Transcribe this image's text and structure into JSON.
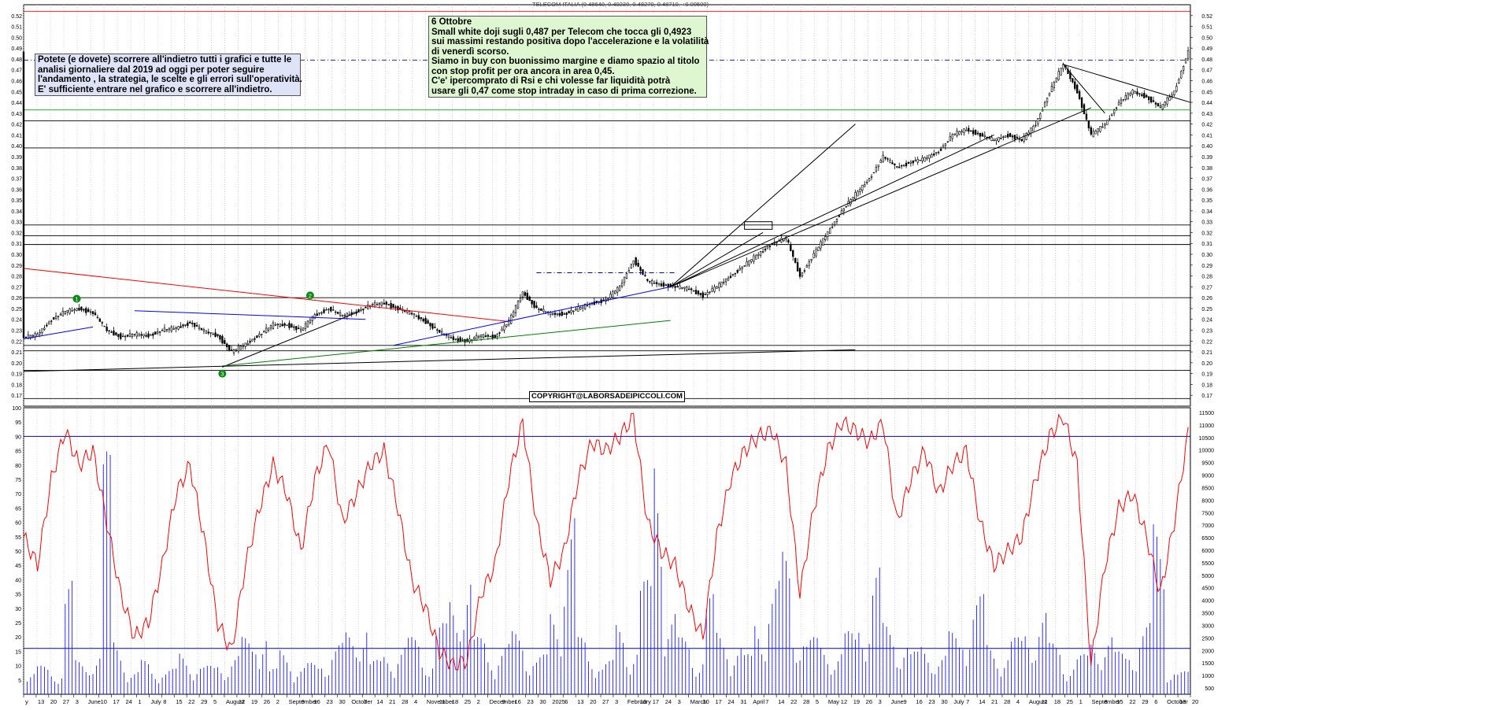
{
  "chart_data": [
    {
      "type": "candlestick",
      "title": "TELECOM ITALIA (0.48640, 0.49230, 0.48270, 0.48710, +0.00500)",
      "ylim": [
        0.16,
        0.53
      ],
      "y_ticks": [
        0.17,
        0.18,
        0.19,
        0.2,
        0.21,
        0.22,
        0.23,
        0.24,
        0.25,
        0.26,
        0.27,
        0.28,
        0.29,
        0.3,
        0.31,
        0.32,
        0.33,
        0.34,
        0.35,
        0.36,
        0.37,
        0.38,
        0.39,
        0.4,
        0.41,
        0.42,
        0.43,
        0.44,
        0.45,
        0.46,
        0.47,
        0.48,
        0.49,
        0.5,
        0.51,
        0.52
      ],
      "x_labels": [
        "y",
        "13",
        "20",
        "27",
        "3",
        "June",
        "10",
        "17",
        "24",
        "1",
        "July",
        "8",
        "15",
        "22",
        "29",
        "5",
        "August",
        "12",
        "19",
        "26",
        "2",
        "September",
        "9",
        "16",
        "23",
        "30",
        "October",
        "7",
        "14",
        "21",
        "28",
        "4",
        "November",
        "11",
        "18",
        "25",
        "2",
        "December",
        "9",
        "16",
        "23",
        "30",
        "2025",
        "6",
        "13",
        "20",
        "27",
        "3",
        "February",
        "10",
        "17",
        "24",
        "3",
        "March",
        "10",
        "17",
        "24",
        "31",
        "April",
        "7",
        "14",
        "22",
        "28",
        "5",
        "May",
        "12",
        "19",
        "26",
        "3",
        "June",
        "9",
        "16",
        "23",
        "30",
        "July",
        "7",
        "14",
        "21",
        "28",
        "4",
        "August",
        "11",
        "18",
        "25",
        "1",
        "September",
        "8",
        "15",
        "22",
        "29",
        "6",
        "October",
        "13",
        "20"
      ],
      "close_path": [
        [
          0,
          0.223
        ],
        [
          6,
          0.226
        ],
        [
          12,
          0.24
        ],
        [
          18,
          0.247
        ],
        [
          24,
          0.25
        ],
        [
          30,
          0.246
        ],
        [
          36,
          0.23
        ],
        [
          42,
          0.224
        ],
        [
          48,
          0.226
        ],
        [
          54,
          0.225
        ],
        [
          60,
          0.23
        ],
        [
          66,
          0.232
        ],
        [
          72,
          0.237
        ],
        [
          78,
          0.229
        ],
        [
          84,
          0.225
        ],
        [
          90,
          0.21
        ],
        [
          96,
          0.217
        ],
        [
          102,
          0.226
        ],
        [
          108,
          0.235
        ],
        [
          114,
          0.235
        ],
        [
          120,
          0.23
        ],
        [
          126,
          0.244
        ],
        [
          132,
          0.25
        ],
        [
          138,
          0.243
        ],
        [
          144,
          0.247
        ],
        [
          150,
          0.253
        ],
        [
          156,
          0.255
        ],
        [
          162,
          0.25
        ],
        [
          168,
          0.245
        ],
        [
          174,
          0.238
        ],
        [
          180,
          0.228
        ],
        [
          186,
          0.222
        ],
        [
          192,
          0.22
        ],
        [
          198,
          0.225
        ],
        [
          204,
          0.224
        ],
        [
          210,
          0.238
        ],
        [
          216,
          0.265
        ],
        [
          222,
          0.25
        ],
        [
          228,
          0.245
        ],
        [
          234,
          0.245
        ],
        [
          240,
          0.25
        ],
        [
          246,
          0.255
        ],
        [
          252,
          0.258
        ],
        [
          258,
          0.27
        ],
        [
          264,
          0.295
        ],
        [
          270,
          0.275
        ],
        [
          276,
          0.272
        ],
        [
          282,
          0.27
        ],
        [
          288,
          0.268
        ],
        [
          294,
          0.262
        ],
        [
          300,
          0.27
        ],
        [
          306,
          0.28
        ],
        [
          312,
          0.29
        ],
        [
          318,
          0.3
        ],
        [
          324,
          0.31
        ],
        [
          330,
          0.315
        ],
        [
          336,
          0.28
        ],
        [
          342,
          0.3
        ],
        [
          348,
          0.32
        ],
        [
          354,
          0.34
        ],
        [
          360,
          0.355
        ],
        [
          366,
          0.37
        ],
        [
          372,
          0.39
        ],
        [
          378,
          0.38
        ],
        [
          384,
          0.385
        ],
        [
          390,
          0.388
        ],
        [
          396,
          0.395
        ],
        [
          402,
          0.41
        ],
        [
          408,
          0.415
        ],
        [
          414,
          0.41
        ],
        [
          420,
          0.405
        ],
        [
          426,
          0.41
        ],
        [
          432,
          0.405
        ],
        [
          438,
          0.42
        ],
        [
          444,
          0.45
        ],
        [
          450,
          0.475
        ],
        [
          456,
          0.45
        ],
        [
          462,
          0.41
        ],
        [
          468,
          0.42
        ],
        [
          474,
          0.44
        ],
        [
          480,
          0.45
        ],
        [
          486,
          0.445
        ],
        [
          492,
          0.435
        ],
        [
          498,
          0.45
        ],
        [
          504,
          0.487
        ]
      ],
      "horizontal_levels": [
        0.524,
        0.479,
        0.433,
        0.423,
        0.398,
        0.327,
        0.317,
        0.309,
        0.26,
        0.216,
        0.211,
        0.193,
        0.167
      ],
      "markers": [
        "1",
        "2",
        "3"
      ],
      "annotations": [
        "COPYRIGHT@LABORSADEIPICCOLI.COM"
      ],
      "series_colors": {
        "up": "#ffffff",
        "down": "#000000",
        "resistance": "#ff0000",
        "support": "#0000ff",
        "trend_green": "#008000",
        "level_green": "#00c000"
      }
    },
    {
      "type": "line+bar",
      "rsi_ylim": [
        0,
        100
      ],
      "rsi_ticks": [
        5,
        10,
        15,
        20,
        25,
        30,
        35,
        40,
        45,
        50,
        55,
        60,
        65,
        70,
        75,
        80,
        85,
        90,
        95,
        100
      ],
      "volume_ticks": [
        "500",
        "1000",
        "1500",
        "2000",
        "2500",
        "3000",
        "3500",
        "4000",
        "4500",
        "5000",
        "5500",
        "6000",
        "6500",
        "7000",
        "7500",
        "8000",
        "8500",
        "9000",
        "9500",
        "10000",
        "10500",
        "11000",
        "11500"
      ],
      "rsi_levels": [
        90,
        16
      ],
      "rsi_path": [
        [
          0,
          55
        ],
        [
          6,
          45
        ],
        [
          12,
          75
        ],
        [
          18,
          92
        ],
        [
          24,
          80
        ],
        [
          30,
          85
        ],
        [
          36,
          60
        ],
        [
          42,
          35
        ],
        [
          48,
          20
        ],
        [
          54,
          25
        ],
        [
          60,
          45
        ],
        [
          66,
          70
        ],
        [
          72,
          80
        ],
        [
          78,
          55
        ],
        [
          84,
          25
        ],
        [
          90,
          15
        ],
        [
          96,
          45
        ],
        [
          102,
          65
        ],
        [
          108,
          80
        ],
        [
          114,
          70
        ],
        [
          120,
          50
        ],
        [
          126,
          75
        ],
        [
          132,
          88
        ],
        [
          138,
          60
        ],
        [
          144,
          70
        ],
        [
          150,
          80
        ],
        [
          156,
          85
        ],
        [
          162,
          65
        ],
        [
          168,
          40
        ],
        [
          174,
          30
        ],
        [
          180,
          15
        ],
        [
          186,
          10
        ],
        [
          192,
          12
        ],
        [
          198,
          35
        ],
        [
          204,
          45
        ],
        [
          210,
          75
        ],
        [
          216,
          95
        ],
        [
          222,
          60
        ],
        [
          228,
          40
        ],
        [
          234,
          50
        ],
        [
          240,
          75
        ],
        [
          246,
          88
        ],
        [
          252,
          85
        ],
        [
          258,
          90
        ],
        [
          264,
          97
        ],
        [
          270,
          60
        ],
        [
          276,
          50
        ],
        [
          282,
          45
        ],
        [
          288,
          30
        ],
        [
          294,
          20
        ],
        [
          300,
          55
        ],
        [
          306,
          75
        ],
        [
          312,
          85
        ],
        [
          318,
          90
        ],
        [
          324,
          92
        ],
        [
          330,
          80
        ],
        [
          336,
          35
        ],
        [
          342,
          65
        ],
        [
          348,
          85
        ],
        [
          354,
          95
        ],
        [
          360,
          92
        ],
        [
          366,
          88
        ],
        [
          372,
          95
        ],
        [
          378,
          60
        ],
        [
          384,
          75
        ],
        [
          390,
          85
        ],
        [
          396,
          70
        ],
        [
          402,
          80
        ],
        [
          408,
          85
        ],
        [
          414,
          60
        ],
        [
          420,
          45
        ],
        [
          426,
          50
        ],
        [
          432,
          55
        ],
        [
          438,
          75
        ],
        [
          444,
          90
        ],
        [
          450,
          97
        ],
        [
          456,
          80
        ],
        [
          462,
          10
        ],
        [
          468,
          45
        ],
        [
          474,
          65
        ],
        [
          480,
          70
        ],
        [
          486,
          55
        ],
        [
          492,
          35
        ],
        [
          498,
          60
        ],
        [
          504,
          91
        ]
      ],
      "volume_bars": [
        8,
        10,
        9,
        40,
        12,
        15,
        85,
        20,
        8,
        12,
        10,
        9,
        15,
        11,
        10,
        12,
        14,
        20,
        25,
        9,
        16,
        10,
        11,
        14,
        18,
        22,
        30,
        12,
        15,
        18,
        20,
        14,
        25,
        35,
        45,
        20,
        15,
        18,
        22,
        16,
        14,
        30,
        65,
        20,
        15,
        12,
        25,
        18,
        40,
        95,
        30,
        20,
        15,
        35,
        22,
        18,
        14,
        28,
        40,
        50,
        25,
        20,
        18,
        16,
        22,
        30,
        45,
        25,
        20,
        15,
        18,
        14,
        22,
        28,
        35,
        18,
        15,
        20,
        25,
        30,
        18,
        12,
        14,
        20,
        22,
        15,
        18,
        25,
        60,
        10,
        8
      ]
    }
  ],
  "notes": {
    "left": [
      "Potete (e dovete) scorrere all'indietro tutti i grafici e tutte le",
      "analisi giornaliere dal 2019 ad oggi per poter seguire",
      "l'andamento , la strategia, le scelte e gli errori sull'operatività.",
      "E' sufficiente entrare nel grafico e scorrere all'indietro."
    ],
    "main": [
      "6 Ottobre",
      "Small white doji sugli 0,487 per Telecom che tocca gli 0,4923",
      "sui massimi restando positiva dopo l'accelerazione e la volatilità",
      "di venerdì scorso.",
      "Siamo in buy con buonissimo margine e diamo spazio al titolo",
      "con stop profit per ora ancora in area 0,45.",
      "C'e' ipercomprato di Rsi e chi volesse far liquidità potrà",
      "usare gli 0,47 come stop intraday in caso di prima correzione."
    ]
  },
  "copyright": "COPYRIGHT@LABORSADEIPICCOLI.COM",
  "top_title": "TELECOM ITALIA (0.48640, 0.49230, 0.48270, 0.48710, +0.00500)"
}
